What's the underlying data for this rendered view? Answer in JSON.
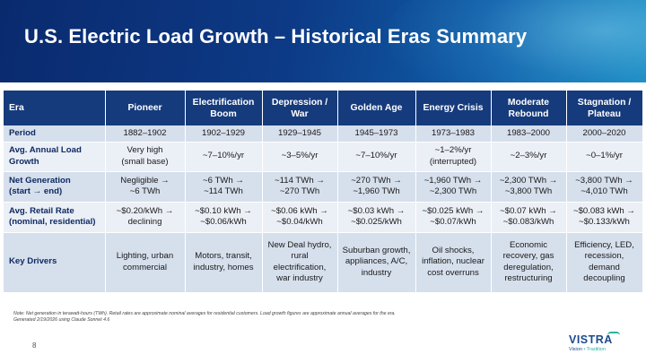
{
  "slide": {
    "title": "U.S. Electric Load Growth – Historical Eras Summary",
    "page_number": "8"
  },
  "table": {
    "headers": [
      "Era",
      "Pioneer",
      "Electrification Boom",
      "Depression / War",
      "Golden Age",
      "Energy Crisis",
      "Moderate Rebound",
      "Stagnation / Plateau"
    ],
    "rows": [
      {
        "label": "Period",
        "cells": [
          "1882–1902",
          "1902–1929",
          "1929–1945",
          "1945–1973",
          "1973–1983",
          "1983–2000",
          "2000–2020"
        ]
      },
      {
        "label": "Avg. Annual Load Growth",
        "cells": [
          "Very high\n(small base)",
          "~7–10%/yr",
          "~3–5%/yr",
          "~7–10%/yr",
          "~1–2%/yr\n(interrupted)",
          "~2–3%/yr",
          "~0–1%/yr"
        ]
      },
      {
        "label": "Net Generation\n(start → end)",
        "cells": [
          "Negligible →\n~6 TWh",
          "~6 TWh →\n~114 TWh",
          "~114 TWh →\n~270 TWh",
          "~270 TWh →\n~1,960 TWh",
          "~1,960 TWh →\n~2,300 TWh",
          "~2,300 TWh →\n~3,800 TWh",
          "~3,800 TWh →\n~4,010 TWh"
        ]
      },
      {
        "label": "Avg. Retail Rate\n(nominal, residential)",
        "cells": [
          "~$0.20/kWh →\ndeclining",
          "~$0.10 kWh →\n~$0.06/kWh",
          "~$0.06 kWh →\n~$0.04/kWh",
          "~$0.03 kWh →\n~$0.025/kWh",
          "~$0.025 kWh →\n~$0.07/kWh",
          "~$0.07 kWh →\n~$0.083/kWh",
          "~$0.083 kWh →\n~$0.133/kWh"
        ]
      },
      {
        "label": "Key Drivers",
        "cells": [
          "Lighting, urban\ncommercial",
          "Motors, transit,\nindustry, homes",
          "New Deal hydro,\nrural\nelectrification,\nwar industry",
          "Suburban growth,\nappliances, A/C,\nindustry",
          "Oil shocks,\ninflation, nuclear\ncost overruns",
          "Economic\nrecovery, gas\nderegulation,\nrestructuring",
          "Efficiency, LED,\nrecession,\ndemand\ndecoupling"
        ]
      }
    ]
  },
  "footer": {
    "note": "Note: Net generation in terawatt-hours (TWh). Retail rates are approximate nominal averages for residential customers. Load growth figures are approximate annual averages for the era.",
    "generated": "Generated 2/19/2026 using Claude Sonnet 4.6"
  },
  "logo": {
    "word": "VISTRA",
    "tagline_part1": "Vision",
    "tagline_sep": "•",
    "tagline_part2": "Tradition"
  }
}
